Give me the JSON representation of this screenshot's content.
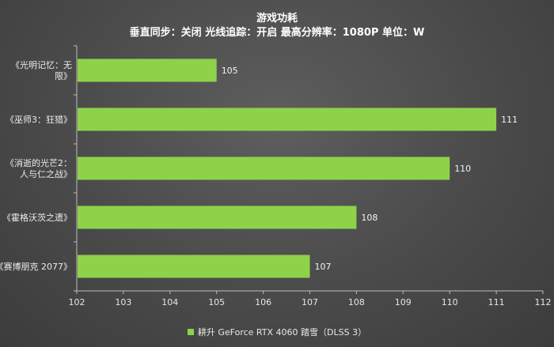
{
  "colors": {
    "bar": "#8ed24a",
    "axis": "#bdbdbd",
    "text": "#ffffff"
  },
  "chart_data": {
    "type": "bar",
    "orientation": "horizontal",
    "title": "游戏功耗",
    "subtitle": "垂直同步：关闭  光线追踪：开启  最高分辨率：1080P  单位：W",
    "categories": [
      [
        "《光明记忆：无",
        "限》"
      ],
      [
        "《巫师3：狂猎》"
      ],
      [
        "《消逝的光芒2：",
        "人与仁之战》"
      ],
      [
        "《霍格沃茨之遗》"
      ],
      [
        "《赛博朋克 2077》"
      ]
    ],
    "series": [
      {
        "name": "耕升 GeForce RTX 4060 踏雪（DLSS 3）",
        "values": [
          105,
          111,
          110,
          108,
          107
        ]
      }
    ],
    "xlim": [
      102,
      112
    ],
    "xticks": [
      102,
      103,
      104,
      105,
      106,
      107,
      108,
      109,
      110,
      111,
      112
    ],
    "grid": false,
    "legend_position": "bottom"
  }
}
